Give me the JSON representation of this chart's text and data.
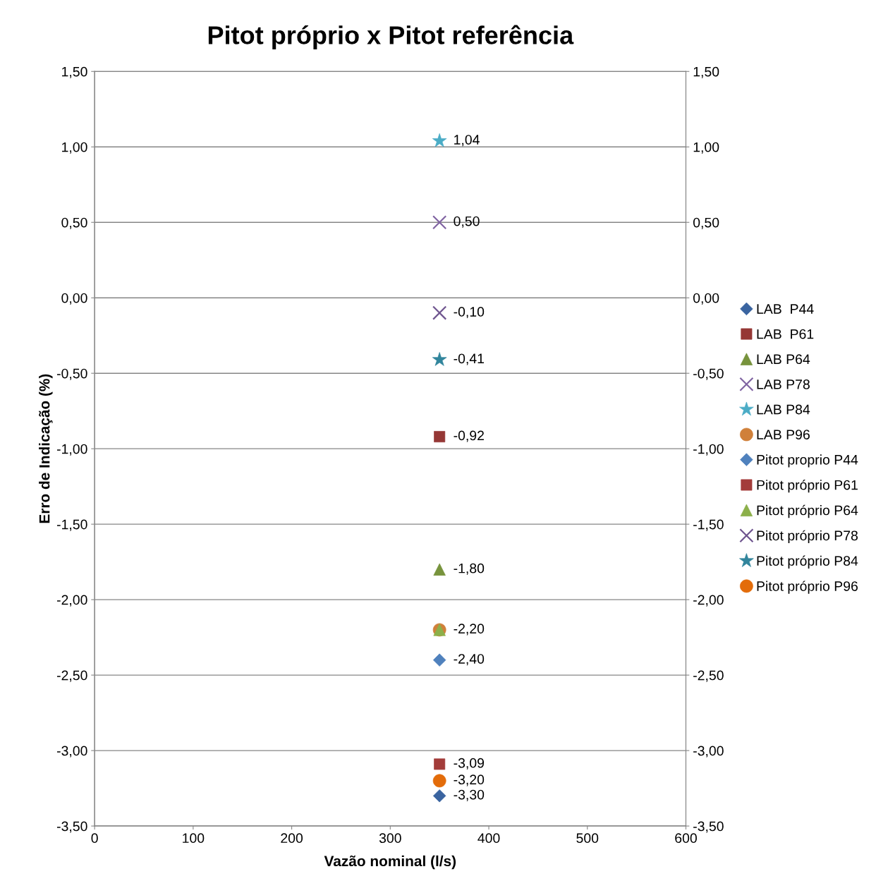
{
  "chart_data": {
    "type": "scatter",
    "title": "Pitot próprio x Pitot referência",
    "xlabel": "Vazão nominal (l/s)",
    "ylabel": "Erro de Indicação (%)",
    "xlim": [
      0,
      600
    ],
    "xticks": [
      0,
      100,
      200,
      300,
      400,
      500,
      600
    ],
    "ylim": [
      -3.5,
      1.5
    ],
    "yticks": [
      {
        "value": -3.5,
        "label": "-3,50"
      },
      {
        "value": -3.0,
        "label": "-3,00"
      },
      {
        "value": -2.5,
        "label": "-2,50"
      },
      {
        "value": -2.0,
        "label": "-2,00"
      },
      {
        "value": -1.5,
        "label": "-1,50"
      },
      {
        "value": -1.0,
        "label": "-1,00"
      },
      {
        "value": -0.5,
        "label": "-0,50"
      },
      {
        "value": 0,
        "label": "0,00"
      },
      {
        "value": 0.5,
        "label": "0,50"
      },
      {
        "value": 1.0,
        "label": "1,00"
      },
      {
        "value": 1.5,
        "label": "1,50"
      }
    ],
    "y2lim": [
      -3.5,
      1.5
    ],
    "y2ticks": [
      {
        "value": -3.5,
        "label": "-3,50"
      },
      {
        "value": -3.0,
        "label": "-3,00"
      },
      {
        "value": -2.5,
        "label": "-2,50"
      },
      {
        "value": -2.0,
        "label": "-2,00"
      },
      {
        "value": -1.5,
        "label": "-1,50"
      },
      {
        "value": -1.0,
        "label": "-1,00"
      },
      {
        "value": -0.5,
        "label": "-0,50"
      },
      {
        "value": 0,
        "label": "0,00"
      },
      {
        "value": 0.5,
        "label": "0,50"
      },
      {
        "value": 1.0,
        "label": "1,00"
      },
      {
        "value": 1.5,
        "label": "1,50"
      }
    ],
    "grid": "y",
    "legend": "right",
    "x": [
      350
    ],
    "series": [
      {
        "name": "LAB  P44",
        "color": "#3a64a0",
        "marker": "diamond",
        "values": [
          -3.3
        ],
        "value_labels": [
          "-3,30"
        ]
      },
      {
        "name": "LAB  P61",
        "color": "#953735",
        "marker": "square",
        "values": [
          -0.92
        ],
        "value_labels": [
          "-0,92"
        ]
      },
      {
        "name": "LAB P64",
        "color": "#77933c",
        "marker": "triangle",
        "values": [
          -1.8
        ],
        "value_labels": [
          "-1,80"
        ]
      },
      {
        "name": "LAB P78",
        "color": "#8064a2",
        "marker": "cross",
        "values": [
          0.5
        ],
        "value_labels": [
          "0,50"
        ]
      },
      {
        "name": "LAB P84",
        "color": "#4bacc6",
        "marker": "star",
        "values": [
          1.04
        ],
        "value_labels": [
          "1,04"
        ]
      },
      {
        "name": "LAB P96",
        "color": "#d0803a",
        "marker": "circle",
        "values": [
          -2.2
        ],
        "value_labels": [
          null
        ]
      },
      {
        "name": "Pitot proprio P44",
        "color": "#4f81bd",
        "marker": "diamond",
        "values": [
          -2.4
        ],
        "value_labels": [
          "-2,40"
        ]
      },
      {
        "name": "Pitot próprio P61",
        "color": "#a33c3a",
        "marker": "square",
        "values": [
          -3.09
        ],
        "value_labels": [
          "-3,09"
        ]
      },
      {
        "name": "Pitot próprio P64",
        "color": "#8cb04a",
        "marker": "triangle",
        "values": [
          -2.2
        ],
        "value_labels": [
          "-2,20"
        ]
      },
      {
        "name": "Pitot próprio P78",
        "color": "#6f558f",
        "marker": "cross",
        "values": [
          -0.1
        ],
        "value_labels": [
          "-0,10"
        ]
      },
      {
        "name": "Pitot próprio P84",
        "color": "#31859c",
        "marker": "star",
        "values": [
          -0.41
        ],
        "value_labels": [
          "-0,41"
        ]
      },
      {
        "name": "Pitot próprio P96",
        "color": "#e36c0a",
        "marker": "circle",
        "values": [
          -3.2
        ],
        "value_labels": [
          "-3,20"
        ]
      }
    ]
  }
}
